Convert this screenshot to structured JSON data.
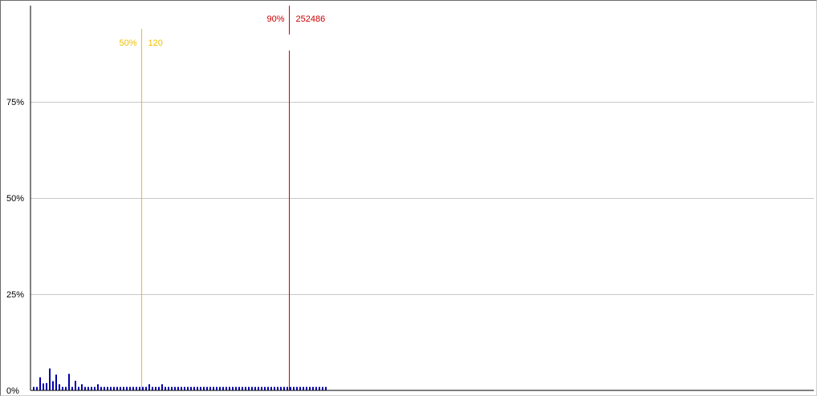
{
  "chart_data": {
    "type": "bar",
    "title": "",
    "xlabel": "",
    "ylabel": "",
    "ylim": [
      0,
      100
    ],
    "y_tick_labels": [
      "0%",
      "25%",
      "50%",
      "75%"
    ],
    "y_ticks": [
      0,
      25,
      50,
      75
    ],
    "grid": true,
    "bar_color": "#0000aa",
    "values": [
      0.9,
      0.9,
      3.4,
      1.8,
      1.9,
      5.7,
      2.4,
      4.1,
      1.6,
      0.9,
      0.9,
      4.3,
      0.9,
      2.5,
      0.9,
      1.6,
      0.9,
      0.9,
      0.9,
      0.9,
      1.6,
      0.9,
      0.9,
      0.9,
      0.9,
      0.9,
      0.9,
      0.9,
      0.9,
      0.9,
      0.9,
      0.9,
      0.9,
      0.9,
      0.9,
      0.9,
      1.6,
      0.9,
      0.9,
      0.9,
      1.6,
      0.9,
      0.9,
      0.9,
      0.9,
      0.9,
      0.9,
      0.9,
      0.9,
      0.9,
      0.9,
      0.9,
      0.9,
      0.9,
      0.9,
      0.9,
      0.9,
      0.9,
      0.9,
      0.9,
      0.9,
      0.9,
      0.9,
      0.9,
      0.9,
      0.9,
      0.9,
      0.9,
      0.9,
      0.9,
      0.9,
      0.9,
      0.9,
      0.9,
      0.9,
      0.9,
      0.9,
      0.9,
      0.9,
      0.9,
      0.9,
      0.9,
      0.9,
      0.9,
      0.9,
      0.9,
      0.9,
      0.9,
      0.9,
      0.9,
      0.9,
      0.9
    ],
    "markers": [
      {
        "percent_label": "50%",
        "value_label": "120",
        "color": "#f0c000",
        "bin": 34
      },
      {
        "percent_label": "90%",
        "value_label": "252486",
        "color": "#cc0000",
        "bin": 80
      }
    ]
  }
}
